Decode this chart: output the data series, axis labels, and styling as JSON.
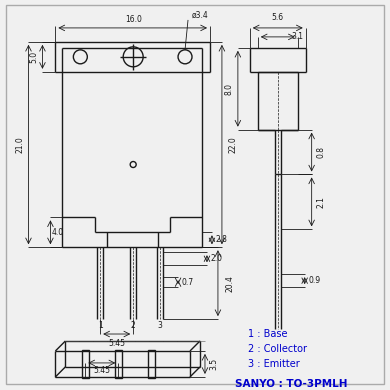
{
  "background_color": "#f0f0f0",
  "line_color": "#1a1a1a",
  "dim_color": "#1a1a1a",
  "text_color": "#1a1a1a",
  "blue_text": "#0000cc",
  "annotations": {
    "phi34": "ø3.4",
    "dim_160": "16.0",
    "dim_50": "5.0",
    "dim_210": "21.0",
    "dim_40": "4.0",
    "dim_28": "2.8",
    "dim_20": "2.0",
    "dim_07": "0.7",
    "dim_204": "20.4",
    "dim_220": "22.0",
    "dim_545_front": "5.45",
    "dim_35": "3.5",
    "dim_545_bottom": "5.45",
    "dim_56": "5.6",
    "dim_31": "3.1",
    "dim_80": "8.0",
    "dim_08": "0.8",
    "dim_21": "2.1",
    "dim_09": "0.9",
    "label1": "1 : Base",
    "label2": "2 : Collector",
    "label3": "3 : Emitter",
    "sanyo": "SANYO : TO-3PMLH"
  }
}
